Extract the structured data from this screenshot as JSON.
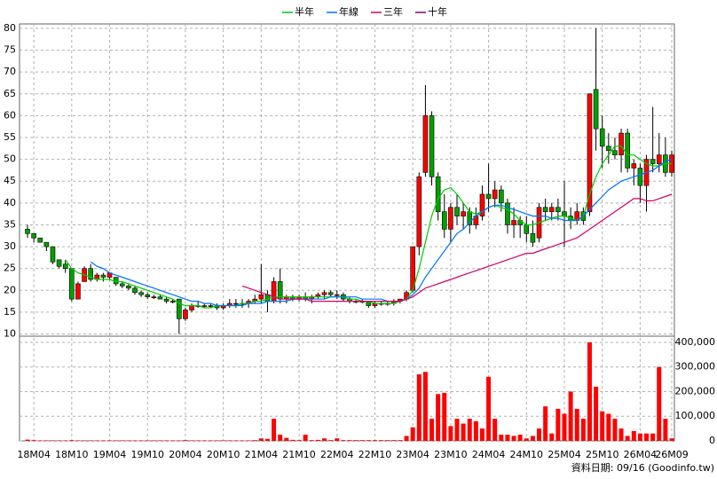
{
  "chart_data": {
    "type": "candlestick",
    "legend": "top",
    "grid": true,
    "up_color": "#ff0000",
    "down_color": "#00a000",
    "footer": "資料日期: 09/16  (Goodinfo.tw)",
    "ylim": [
      9.5,
      81
    ],
    "yticks": [
      10,
      15,
      20,
      25,
      30,
      35,
      40,
      45,
      50,
      55,
      60,
      65,
      70,
      75,
      80
    ],
    "categories": [
      null,
      "18M04",
      null,
      null,
      null,
      null,
      null,
      "18M10",
      null,
      null,
      null,
      null,
      null,
      "19M04",
      null,
      null,
      null,
      null,
      null,
      "19M10",
      null,
      null,
      null,
      null,
      null,
      "20M04",
      null,
      null,
      null,
      null,
      null,
      "20M10",
      null,
      null,
      null,
      null,
      null,
      "21M04",
      null,
      null,
      null,
      null,
      null,
      "21M10",
      null,
      null,
      null,
      null,
      null,
      "22M04",
      null,
      null,
      null,
      null,
      null,
      "22M10",
      null,
      null,
      null,
      null,
      null,
      "23M04",
      null,
      null,
      null,
      null,
      null,
      "23M10",
      null,
      null,
      null,
      null,
      null,
      "24M04",
      null,
      null,
      null,
      null,
      null,
      "24M10",
      null,
      null,
      null,
      null,
      null,
      "25M04",
      null,
      null,
      null,
      null,
      null,
      "25M10",
      null,
      null,
      null,
      null,
      null,
      "26M04",
      null,
      null,
      null,
      null,
      "26M09"
    ],
    "open": [
      34,
      33,
      32,
      31,
      30,
      27,
      26,
      25,
      18,
      22,
      25,
      22.5,
      23.5,
      23,
      23,
      21.5,
      21,
      20.5,
      19.5,
      19,
      18.5,
      18.5,
      18,
      17.5,
      18,
      13.5,
      15.5,
      16.5,
      16.5,
      16.5,
      16.5,
      16,
      16.5,
      17,
      17,
      17,
      17.5,
      18,
      19,
      17.5,
      22,
      18,
      18.5,
      18,
      18.5,
      18,
      18.5,
      19,
      19.5,
      19,
      19,
      18,
      17.5,
      17.5,
      17.5,
      16.5,
      17,
      17,
      17,
      17.5,
      18,
      20,
      30,
      47,
      60,
      46,
      38,
      34,
      39,
      37,
      38,
      35,
      37,
      42,
      41,
      43,
      40,
      35,
      36,
      35,
      33,
      32,
      39,
      38,
      39,
      38,
      37,
      36,
      38,
      38,
      66,
      57,
      53,
      52,
      51,
      56,
      48,
      48,
      44,
      50,
      49,
      51,
      47
    ],
    "high": [
      35,
      33,
      32,
      31,
      30,
      27,
      27,
      25,
      22,
      25.5,
      26,
      24,
      24,
      24,
      23,
      22,
      21.5,
      21,
      20,
      19.5,
      19,
      19,
      18.5,
      18,
      18,
      16,
      17,
      17.5,
      17,
      17,
      17,
      17,
      18,
      18,
      18,
      18,
      19,
      26,
      20,
      23,
      25,
      19,
      19,
      19,
      19.5,
      19,
      19.5,
      20,
      20,
      20,
      19.5,
      18.5,
      18,
      18,
      17.5,
      17.5,
      17.5,
      17.5,
      18,
      18,
      20,
      30,
      47,
      67,
      61,
      47,
      42,
      40,
      42,
      40,
      39,
      39,
      44,
      49,
      45,
      44,
      41,
      39,
      37,
      37,
      36,
      40,
      41,
      40,
      41,
      45,
      39,
      40,
      39,
      65,
      80,
      60,
      56,
      55,
      57,
      57,
      50,
      49,
      51,
      62,
      56,
      55,
      52
    ],
    "low": [
      32,
      31,
      31,
      29,
      26,
      25,
      24,
      17.5,
      18,
      22,
      22,
      22,
      22,
      22.5,
      21,
      20.5,
      20,
      19,
      18.5,
      18,
      18,
      18,
      17,
      17,
      10,
      13,
      15,
      16,
      16,
      16,
      15.5,
      15.5,
      16,
      16,
      16,
      16,
      17,
      17,
      15,
      17,
      17,
      17,
      17.5,
      17.5,
      17.5,
      17,
      18,
      18,
      18.5,
      18,
      17.5,
      17,
      17,
      17,
      16,
      16,
      16.5,
      16.5,
      16.5,
      17,
      17.5,
      19.5,
      28,
      46,
      44,
      36,
      32,
      31,
      35,
      34,
      33,
      34,
      36,
      38,
      39,
      38,
      33,
      32,
      32,
      31,
      30,
      31,
      36,
      36,
      36,
      30,
      34,
      35,
      35,
      37,
      52,
      48,
      49,
      50,
      47,
      47,
      44,
      40,
      38,
      47,
      47,
      46,
      46
    ],
    "close": [
      33,
      32,
      31,
      30,
      26.5,
      25.5,
      25,
      18,
      21.5,
      25,
      22.5,
      23.5,
      23,
      24,
      21.5,
      21,
      20.5,
      19.5,
      19,
      18.5,
      18.5,
      18,
      17.5,
      17.5,
      13.5,
      15.5,
      16.5,
      16.5,
      16.5,
      16.5,
      16,
      16.5,
      17,
      17,
      17,
      17.5,
      18,
      19,
      17.5,
      22,
      18,
      18.5,
      18,
      18.5,
      18,
      18.5,
      19,
      19.5,
      19,
      19,
      18,
      17.5,
      17.5,
      17.5,
      16.5,
      17,
      17,
      17,
      17.5,
      18,
      19.5,
      30,
      46,
      60,
      46,
      38,
      34,
      39,
      37,
      38,
      35,
      37,
      42,
      41,
      43,
      40,
      35,
      36,
      35,
      33,
      31,
      39,
      38,
      39,
      38,
      37,
      36,
      38,
      36,
      65,
      57,
      53,
      52,
      51,
      56,
      48,
      49,
      44,
      50,
      49,
      51,
      47,
      51
    ],
    "series": [
      {
        "name": "半年",
        "color": "#00cc00",
        "values": [
          null,
          null,
          null,
          null,
          null,
          null,
          27,
          25,
          24,
          23.5,
          23,
          22.5,
          22.5,
          22.5,
          22,
          22,
          21.5,
          21,
          20.5,
          20,
          19.5,
          19,
          18.5,
          18,
          17,
          16.5,
          16.5,
          16.5,
          16,
          16,
          16.5,
          16.5,
          16.5,
          16.5,
          17,
          17,
          17.5,
          17.5,
          18,
          18.5,
          18.5,
          18.5,
          18.5,
          18.5,
          18.5,
          18.5,
          18.5,
          18.5,
          18.5,
          18.5,
          18.5,
          18,
          18,
          17.5,
          17.5,
          17,
          17,
          17,
          17,
          17.5,
          18,
          20,
          25,
          31,
          37,
          41,
          43,
          43.5,
          42,
          40,
          38,
          37.5,
          38,
          39,
          39.5,
          39,
          38.5,
          37.5,
          36,
          35,
          35,
          35.5,
          36,
          36.5,
          37,
          37,
          36.5,
          36,
          37,
          42,
          46,
          49,
          51,
          53,
          53,
          51,
          51,
          50,
          49,
          48.5,
          48.5,
          49,
          49
        ]
      },
      {
        "name": "年線",
        "color": "#0070ff",
        "values": [
          null,
          null,
          null,
          null,
          null,
          null,
          null,
          null,
          null,
          null,
          26.5,
          25.5,
          25,
          24,
          23.5,
          23,
          22.5,
          22,
          21.5,
          21,
          20.5,
          20,
          19.5,
          19,
          18.5,
          18,
          17.5,
          17.5,
          17,
          17,
          16.5,
          16.5,
          16.5,
          16.5,
          16.5,
          17,
          17,
          17,
          17.5,
          17.5,
          17.5,
          17.5,
          18,
          18,
          18,
          18,
          18,
          18,
          18.5,
          18.5,
          18.5,
          18.5,
          18.5,
          18,
          18,
          18,
          18,
          17.5,
          17.5,
          17.5,
          18,
          19,
          20.5,
          23,
          25,
          27,
          29,
          31,
          33,
          34,
          35.5,
          37,
          38,
          39,
          39.5,
          39.5,
          39,
          38.5,
          38,
          37.5,
          37,
          37,
          37,
          36.5,
          36.5,
          36,
          36,
          36,
          37,
          38.5,
          40,
          41.5,
          43,
          44,
          45,
          45.5,
          46,
          46.5,
          47,
          47.5,
          48.5,
          49.5,
          50
        ]
      },
      {
        "name": "三年",
        "color": "#d0006a",
        "values": [
          null,
          null,
          null,
          null,
          null,
          null,
          null,
          null,
          null,
          null,
          null,
          null,
          null,
          null,
          null,
          null,
          null,
          null,
          null,
          null,
          null,
          null,
          null,
          null,
          null,
          null,
          null,
          null,
          null,
          null,
          null,
          null,
          null,
          null,
          21,
          20.5,
          20,
          19.5,
          19,
          18.5,
          18,
          18,
          18,
          18,
          18,
          17.5,
          17.5,
          17.5,
          17.5,
          17.5,
          17.5,
          17.5,
          17.5,
          17.5,
          17.5,
          17.5,
          17.5,
          17.5,
          17.5,
          17.5,
          18,
          18.5,
          19.5,
          20.5,
          21,
          21.5,
          22,
          22.5,
          23,
          23.5,
          24,
          24.5,
          25,
          25.5,
          26,
          26.5,
          27,
          27.5,
          28,
          28.5,
          28.5,
          29,
          29.5,
          30,
          30.5,
          31,
          31.5,
          32,
          33,
          34,
          35,
          36,
          37,
          38,
          39,
          40,
          41,
          41,
          40.5,
          40.5,
          41,
          41.5,
          42
        ]
      },
      {
        "name": "十年",
        "color": "#800080",
        "values": [
          null,
          null,
          null,
          null,
          null,
          null,
          null,
          null,
          null,
          null,
          null,
          null,
          null,
          null,
          null,
          null,
          null,
          null,
          null,
          null,
          null,
          null,
          null,
          null,
          null,
          null,
          null,
          null,
          null,
          null,
          null,
          null,
          null,
          null,
          null,
          null,
          null,
          null,
          null,
          null,
          null,
          null,
          null,
          null,
          null,
          null,
          null,
          null,
          null,
          null,
          null,
          null,
          null,
          null,
          null,
          null,
          null,
          null,
          null,
          null,
          null,
          null,
          null,
          null,
          null,
          null,
          null,
          null,
          null,
          null,
          null,
          null,
          null,
          null,
          null,
          null,
          null,
          null,
          null,
          null,
          null,
          null,
          null,
          null,
          null,
          null,
          null,
          null,
          null,
          null,
          null,
          null,
          null,
          null,
          null,
          null,
          null,
          null,
          null,
          null,
          null,
          null,
          null
        ]
      }
    ],
    "volume": {
      "color": "#ff0000",
      "ylim": [
        0,
        425000
      ],
      "yticks": [
        0,
        {
          "value": 100000,
          "label": "100,000"
        },
        {
          "value": 200000,
          "label": "200,000"
        },
        {
          "value": 300000,
          "label": "300,000"
        },
        {
          "value": 400000,
          "label": "400,000"
        }
      ],
      "values": [
        5000,
        3000,
        2000,
        2000,
        2000,
        2000,
        2000,
        3000,
        2000,
        2000,
        2000,
        2000,
        2000,
        2000,
        2000,
        2000,
        2000,
        2000,
        2000,
        2000,
        2000,
        2000,
        2000,
        2000,
        2000,
        3000,
        2000,
        2000,
        2000,
        2000,
        2000,
        2000,
        2000,
        2000,
        2000,
        2000,
        3000,
        10000,
        8000,
        90000,
        25000,
        12000,
        4000,
        3000,
        25000,
        3000,
        4000,
        10000,
        3000,
        10000,
        3000,
        3000,
        3000,
        3000,
        3000,
        3000,
        3000,
        3000,
        3000,
        3000,
        20000,
        55000,
        270000,
        280000,
        90000,
        190000,
        195000,
        60000,
        90000,
        70000,
        90000,
        80000,
        50000,
        260000,
        90000,
        25000,
        25000,
        20000,
        25000,
        10000,
        20000,
        50000,
        140000,
        30000,
        130000,
        110000,
        200000,
        130000,
        90000,
        400000,
        220000,
        120000,
        110000,
        90000,
        50000,
        20000,
        40000,
        30000,
        30000,
        30000,
        300000,
        90000,
        10000
      ]
    }
  }
}
